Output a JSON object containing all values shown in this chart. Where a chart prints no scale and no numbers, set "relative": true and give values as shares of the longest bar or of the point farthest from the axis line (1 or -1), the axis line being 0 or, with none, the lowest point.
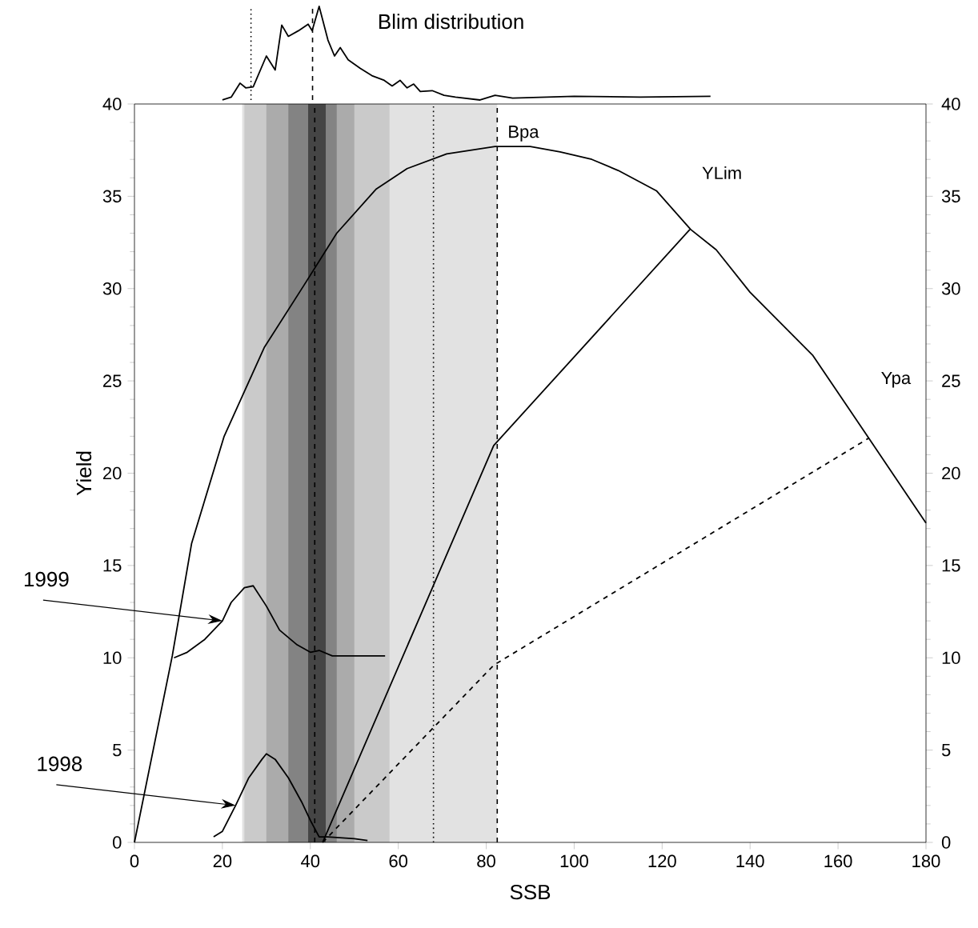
{
  "chart_data": [
    {
      "type": "line",
      "title": "Blim distribution",
      "relative": true,
      "xlim": [
        0,
        180
      ],
      "tick_labels": false,
      "series": [
        {
          "color": "#000000",
          "x": [
            20,
            22,
            24,
            25.3,
            27,
            30,
            32,
            33.5,
            35,
            37.3,
            39.5,
            40.4,
            42,
            44,
            45.5,
            46.8,
            48.6,
            51.3,
            54,
            56.8,
            58.6,
            60.4,
            62,
            63.5,
            65,
            67.7,
            70.4,
            73,
            78.6,
            82,
            86,
            93,
            100,
            115,
            131
          ],
          "values": [
            0,
            0.03,
            0.18,
            0.13,
            0.14,
            0.47,
            0.32,
            0.8,
            0.68,
            0.74,
            0.81,
            0.74,
            1,
            0.64,
            0.47,
            0.56,
            0.43,
            0.34,
            0.26,
            0.21,
            0.15,
            0.21,
            0.13,
            0.17,
            0.09,
            0.1,
            0.05,
            0.03,
            0,
            0.05,
            0.02,
            0.03,
            0.04,
            0.03,
            0.04
          ]
        }
      ],
      "ref_lines": [
        {
          "axis": "x",
          "value": 40.5,
          "line_style": "dashed"
        },
        {
          "axis": "x",
          "value": 26.5,
          "line_style": "dotted"
        }
      ]
    },
    {
      "type": "line",
      "xlabel": "SSB",
      "ylabel": "Yield",
      "xlim": [
        0,
        180
      ],
      "xticks": [
        0,
        20,
        40,
        60,
        80,
        100,
        120,
        140,
        160,
        180
      ],
      "ylim": [
        0,
        40
      ],
      "yticks": [
        0,
        5,
        10,
        15,
        20,
        25,
        30,
        35,
        40
      ],
      "y2lim": [
        0,
        40
      ],
      "y2ticks": [
        0,
        5,
        10,
        15,
        20,
        25,
        30,
        35,
        40
      ],
      "series": [
        {
          "color": "#000000",
          "x": [
            0,
            8.6,
            13,
            20.4,
            29.5,
            38.6,
            46,
            55,
            62,
            71,
            82,
            90,
            96.8,
            104,
            110,
            118.7,
            126.5,
            132.3,
            140,
            154.2,
            167,
            180
          ],
          "values": [
            0,
            10.1,
            16.2,
            22,
            26.8,
            30.2,
            33,
            35.4,
            36.5,
            37.3,
            37.7,
            37.7,
            37.4,
            37,
            36.4,
            35.3,
            33.2,
            32.1,
            29.8,
            26.4,
            21.9,
            17.3
          ]
        },
        {
          "name": "YLim",
          "color": "#000000",
          "x": [
            42.8,
            81.7,
            126.3
          ],
          "values": [
            0,
            21.5,
            33.2
          ]
        },
        {
          "name": "Ypa",
          "color": "#000000",
          "line_style": "dashed",
          "x": [
            42.8,
            81.7,
            167
          ],
          "values": [
            0,
            9.6,
            21.9
          ]
        },
        {
          "name": "1999",
          "color": "#000000",
          "x": [
            9,
            12,
            16,
            20,
            22,
            25,
            27,
            30,
            33,
            37,
            40,
            42,
            45,
            57
          ],
          "values": [
            10,
            10.3,
            11,
            12,
            13,
            13.8,
            13.9,
            12.8,
            11.5,
            10.7,
            10.3,
            10.4,
            10.1,
            10.1
          ]
        },
        {
          "name": "1998",
          "color": "#000000",
          "x": [
            18,
            20,
            23,
            26,
            29,
            30,
            32,
            35,
            38,
            40,
            42,
            44,
            50,
            53
          ],
          "values": [
            0.3,
            0.6,
            2,
            3.5,
            4.5,
            4.8,
            4.5,
            3.5,
            2.2,
            1.2,
            0.3,
            0.3,
            0.2,
            0.1
          ]
        }
      ],
      "bands": [
        {
          "axis": "x",
          "from": 24.5,
          "to": 82.5,
          "color": "#e2e2e2"
        },
        {
          "axis": "x",
          "from": 25,
          "to": 58,
          "color": "#cacaca"
        },
        {
          "axis": "x",
          "from": 30,
          "to": 50,
          "color": "#ababab"
        },
        {
          "axis": "x",
          "from": 35,
          "to": 46,
          "color": "#838383"
        },
        {
          "axis": "x",
          "from": 39.5,
          "to": 43.5,
          "color": "#454545"
        }
      ],
      "ref_lines": [
        {
          "axis": "x",
          "value": 41,
          "line_style": "dashed"
        },
        {
          "axis": "x",
          "value": 82.5,
          "line_style": "dashed",
          "label": "Bpa"
        },
        {
          "axis": "x",
          "value": 68,
          "line_style": "dotted"
        }
      ]
    }
  ]
}
